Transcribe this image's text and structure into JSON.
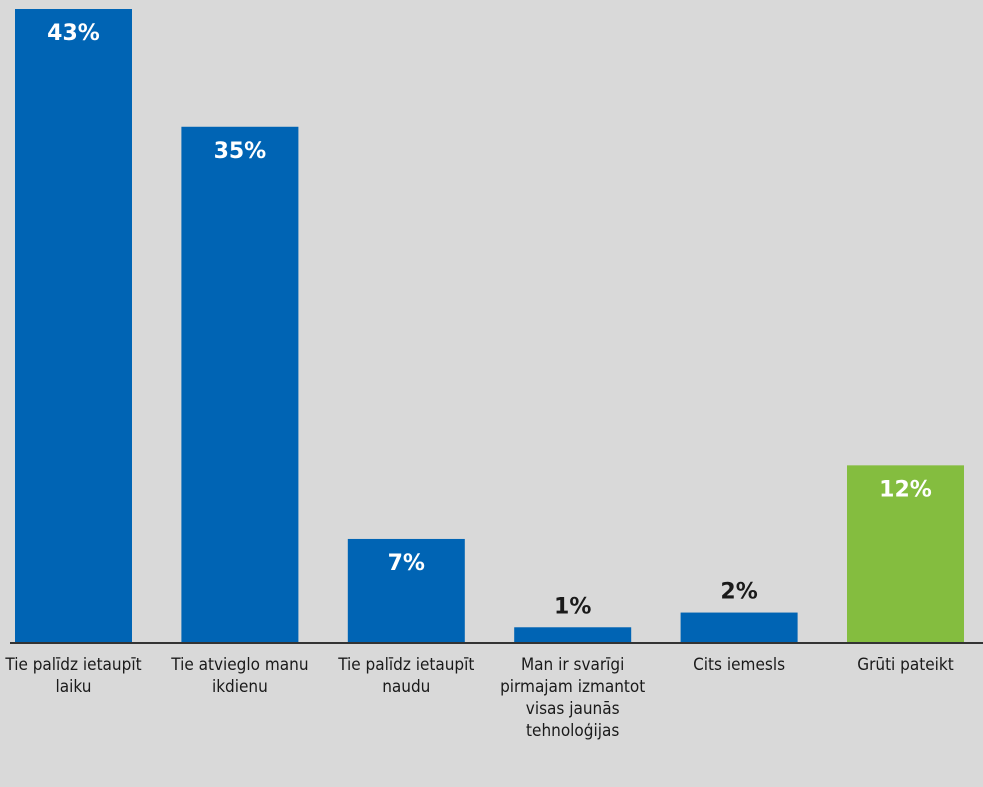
{
  "chart_data": {
    "type": "bar",
    "title": "",
    "xlabel": "",
    "ylabel": "",
    "ylim": [
      0,
      45
    ],
    "grid": false,
    "legend": false,
    "categories": [
      "Tie palīdz ietaupīt laiku",
      "Tie atvieglo manu ikdienu",
      "Tie palīdz ietaupīt naudu",
      "Man ir svarīgi pirmajam izmantot visas jaunās tehnoloģijas",
      "Cits iemesls",
      "Grūti pateikt"
    ],
    "values": [
      43,
      35,
      7,
      1,
      2,
      12
    ],
    "value_labels": [
      "43%",
      "35%",
      "7%",
      "1%",
      "2%",
      "12%"
    ],
    "bar_colors": [
      "#0064b4",
      "#0064b4",
      "#0064b4",
      "#0064b4",
      "#0064b4",
      "#84bd3f"
    ],
    "axis_color": "#333333",
    "label_inside_color": "#ffffff",
    "label_outside_color": "#1a1a1a"
  }
}
